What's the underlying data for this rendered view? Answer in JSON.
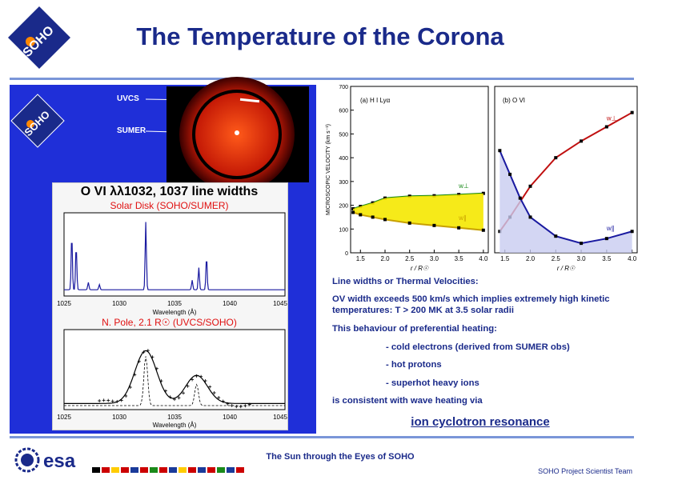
{
  "header": {
    "title": "The Temperature of the Corona",
    "logo_text": "SOHO"
  },
  "left_panel": {
    "instrument_labels": [
      "UVCS",
      "SUMER"
    ],
    "card_title": "O VI λλ1032, 1037 line widths",
    "top_plot_caption": "Solar Disk (SOHO/SUMER)",
    "top_plot_xlabel": "Wavelength (Å)",
    "top_plot_ticks": [
      "1025",
      "1030",
      "1035",
      "1040",
      "1045"
    ],
    "bottom_plot_caption": "N. Pole, 2.1 R☉ (UVCS/SOHO)",
    "bottom_plot_xlabel": "Wavelength (Å)",
    "bottom_plot_ticks": [
      "1025",
      "1030",
      "1035",
      "1040",
      "1045"
    ]
  },
  "chart_data": [
    {
      "type": "line",
      "title": "(a) H I Lyα",
      "xlabel": "r / R☉",
      "ylabel": "MICROSCOPIC VELOCITY (km s⁻¹)",
      "xlim": [
        1.3,
        4.1
      ],
      "ylim": [
        0,
        700
      ],
      "x_ticks": [
        "1.5",
        "2.0",
        "2.5",
        "3.0",
        "3.5",
        "4.0"
      ],
      "y_ticks": [
        "0",
        "100",
        "200",
        "300",
        "400",
        "500",
        "600",
        "700"
      ],
      "series": [
        {
          "name": "w⊥",
          "x": [
            1.35,
            1.5,
            1.75,
            2.0,
            2.5,
            3.0,
            3.5,
            4.0
          ],
          "values": [
            185,
            195,
            210,
            230,
            238,
            240,
            245,
            250
          ]
        },
        {
          "name": "w∥",
          "x": [
            1.35,
            1.5,
            1.75,
            2.0,
            2.5,
            3.0,
            3.5,
            4.0
          ],
          "values": [
            170,
            160,
            150,
            140,
            125,
            115,
            105,
            95
          ]
        }
      ]
    },
    {
      "type": "line",
      "title": "(b) O VI",
      "xlabel": "r / R☉",
      "xlim": [
        1.3,
        4.1
      ],
      "ylim": [
        0,
        700
      ],
      "x_ticks": [
        "1.5",
        "2.0",
        "2.5",
        "3.0",
        "3.5",
        "4.0"
      ],
      "series": [
        {
          "name": "w⊥",
          "x": [
            1.4,
            1.6,
            2.0,
            2.5,
            3.0,
            3.5,
            4.0
          ],
          "values": [
            90,
            150,
            280,
            400,
            470,
            530,
            590
          ]
        },
        {
          "name": "w∥",
          "x": [
            1.4,
            1.6,
            1.8,
            2.0,
            2.5,
            3.0,
            3.5,
            4.0
          ],
          "values": [
            430,
            330,
            230,
            150,
            70,
            40,
            60,
            90
          ]
        }
      ]
    }
  ],
  "right_text": {
    "heading": "Line widths or Thermal Velocities:",
    "para1": "OV width exceeds 500 km/s which implies extremely high kinetic temperatures: T > 200 MK at 3.5 solar radii",
    "para2": "This behaviour of preferential heating:",
    "bullets": [
      "- cold electrons (derived from SUMER obs)",
      "- hot protons",
      "- superhot heavy ions"
    ],
    "para3": "is consistent with wave heating via",
    "link": "ion cyclotron resonance"
  },
  "footer": {
    "esa": "esa",
    "center": "The Sun through the Eyes of SOHO",
    "right": "SOHO Project Scientist Team"
  }
}
